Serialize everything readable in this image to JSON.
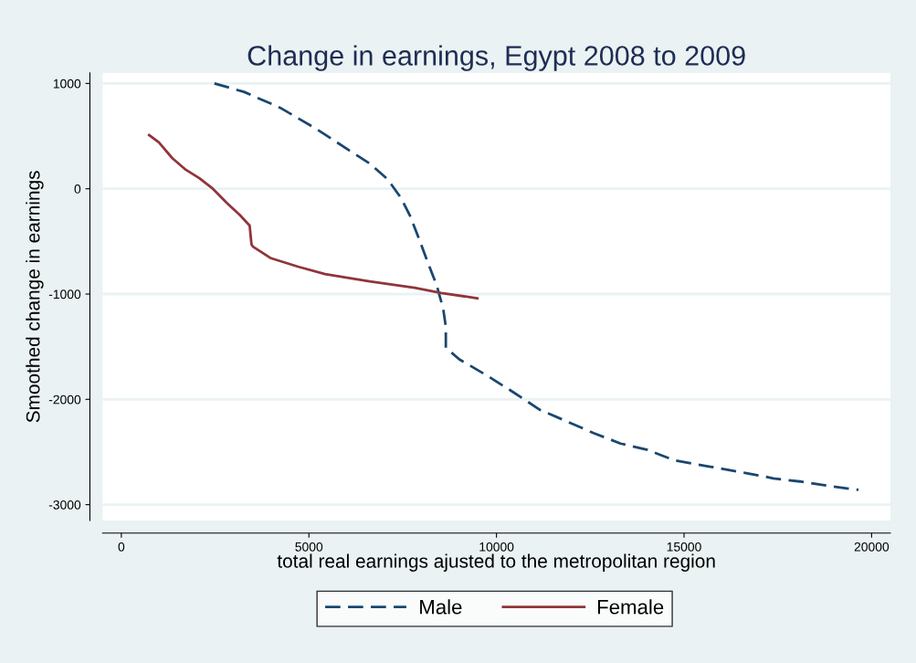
{
  "chart_data": {
    "type": "line",
    "title": "Change in earnings, Egypt 2008 to 2009",
    "xlabel": "total real earnings ajusted to the metropolitan region",
    "ylabel": "Smoothed change in earnings",
    "xlim": [
      -500,
      20500
    ],
    "xticks": [
      0,
      5000,
      10000,
      15000,
      20000
    ],
    "ylim": [
      -3150,
      1100
    ],
    "yticks": [
      -3000,
      -2000,
      -1000,
      0,
      1000
    ],
    "grid": "y",
    "legend": "bottom",
    "series": [
      {
        "name": "Male",
        "color": "#1a476f",
        "line_style": "dashed",
        "x": [
          2480,
          3270,
          4230,
          5190,
          6140,
          6620,
          7100,
          7460,
          7700,
          7940,
          8170,
          8410,
          8580,
          8650,
          8650,
          9010,
          9730,
          10440,
          11160,
          11880,
          12590,
          13310,
          14030,
          14750,
          15700,
          16660,
          17380,
          18090,
          18810,
          19650
        ],
        "values": [
          1000,
          920,
          770,
          570,
          350,
          240,
          90,
          -90,
          -260,
          -480,
          -700,
          -920,
          -1140,
          -1310,
          -1510,
          -1620,
          -1770,
          -1930,
          -2100,
          -2210,
          -2320,
          -2420,
          -2480,
          -2580,
          -2640,
          -2700,
          -2750,
          -2780,
          -2820,
          -2860
        ]
      },
      {
        "name": "Female",
        "color": "#90353b",
        "line_style": "solid",
        "x": [
          740,
          1000,
          1360,
          1720,
          2080,
          2440,
          2800,
          3160,
          3420,
          3470,
          3510,
          3990,
          4710,
          5430,
          6620,
          7820,
          8530,
          9490
        ],
        "values": [
          510,
          440,
          290,
          180,
          100,
          0,
          -130,
          -250,
          -350,
          -530,
          -550,
          -660,
          -740,
          -810,
          -880,
          -940,
          -990,
          -1040
        ]
      }
    ]
  }
}
